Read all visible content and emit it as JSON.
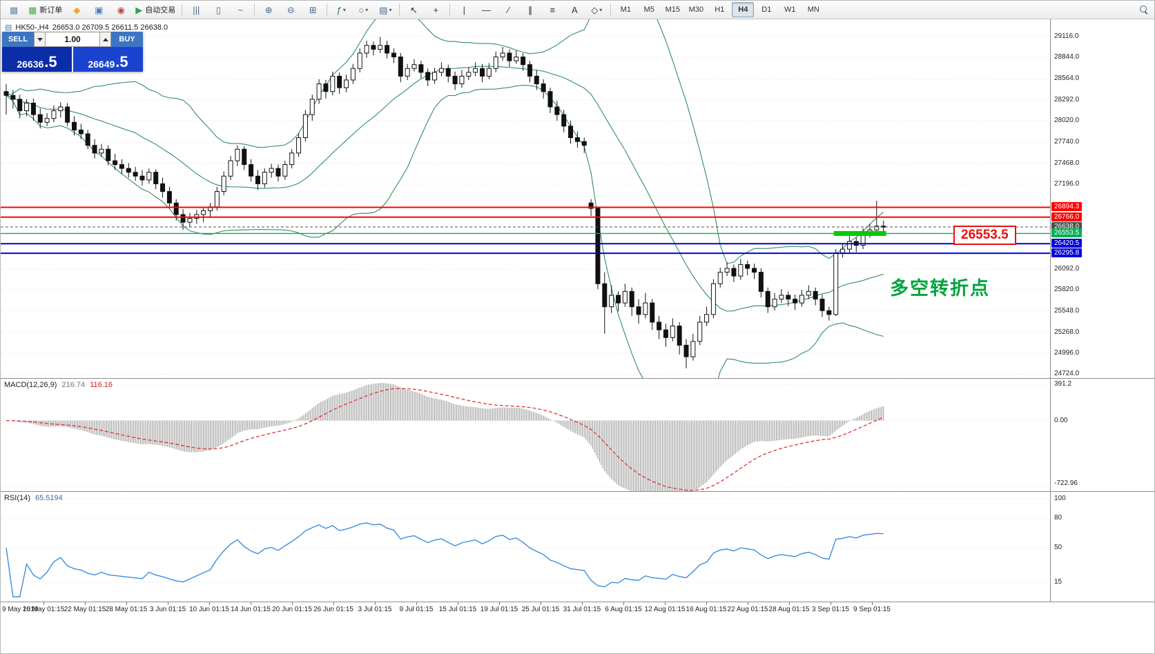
{
  "toolbar": {
    "caret_glyph": "▾",
    "groups": [
      {
        "items": [
          {
            "name": "chart-window-icon",
            "glyph": "▩",
            "color": "#6a8caf"
          },
          {
            "name": "new-order-button",
            "glyph": "▦",
            "color": "#3fae49",
            "label": "新订单"
          },
          {
            "name": "mql-community-icon",
            "glyph": "◆",
            "color": "#f0a830"
          },
          {
            "name": "profile-icon",
            "glyph": "▣",
            "color": "#4a7ebb"
          },
          {
            "name": "news-icon",
            "glyph": "◉",
            "color": "#c04848"
          },
          {
            "name": "autotrading-button",
            "glyph": "▶",
            "color": "#2ea44f",
            "label": "自动交易"
          }
        ]
      },
      {
        "items": [
          {
            "name": "bar-chart-icon",
            "glyph": "|||",
            "color": "#4a6b8a"
          },
          {
            "name": "candlestick-chart-icon",
            "glyph": "▯",
            "color": "#4a6b8a"
          },
          {
            "name": "line-chart-icon",
            "glyph": "~",
            "color": "#4a6b8a"
          }
        ]
      },
      {
        "items": [
          {
            "name": "zoom-in-icon",
            "glyph": "⊕",
            "color": "#4a6b8a"
          },
          {
            "name": "zoom-out-icon",
            "glyph": "⊖",
            "color": "#4a6b8a"
          },
          {
            "name": "tile-windows-icon",
            "glyph": "⊞",
            "color": "#4a6b8a"
          }
        ]
      },
      {
        "items": [
          {
            "name": "indicators-button",
            "glyph": "ƒ",
            "color": "#2e7d32",
            "caret": true
          },
          {
            "name": "periods-button",
            "glyph": "○",
            "color": "#4a6b8a",
            "caret": true
          },
          {
            "name": "templates-button",
            "glyph": "▤",
            "color": "#4a6b8a",
            "caret": true
          }
        ]
      },
      {
        "items": [
          {
            "name": "cursor-icon",
            "glyph": "↖",
            "color": "#333333"
          },
          {
            "name": "crosshair-icon",
            "glyph": "+",
            "color": "#333333"
          }
        ]
      },
      {
        "items": [
          {
            "name": "vertical-line-icon",
            "glyph": "|",
            "color": "#333333"
          },
          {
            "name": "horizontal-line-icon",
            "glyph": "—",
            "color": "#333333"
          },
          {
            "name": "trendline-icon",
            "glyph": "∕",
            "color": "#333333"
          },
          {
            "name": "channel-icon",
            "glyph": "∥",
            "color": "#333333"
          },
          {
            "name": "fibonacci-icon",
            "glyph": "≡",
            "color": "#333333"
          },
          {
            "name": "text-tool-icon",
            "glyph": "A",
            "color": "#333333"
          },
          {
            "name": "arrows-tool-icon",
            "glyph": "◇",
            "color": "#333333",
            "caret": true
          }
        ]
      }
    ],
    "timeframes": {
      "options": [
        "M1",
        "M5",
        "M15",
        "M30",
        "H1",
        "H4",
        "D1",
        "W1",
        "MN"
      ],
      "active": "H4"
    }
  },
  "chart_header": {
    "symbol": "HK50-,H4",
    "ohlc": "26653.0 26709.5 26611.5 26638.0"
  },
  "trade_panel": {
    "sell_label": "SELL",
    "buy_label": "BUY",
    "volume": "1.00",
    "sell_price_main": "26636",
    "sell_price_frac": ".5",
    "buy_price_main": "26649",
    "buy_price_frac": ".5"
  },
  "chart_data": {
    "type": "candlestick",
    "symbol": "HK50-",
    "period": "H4",
    "price_axis": {
      "min": 24700,
      "max": 29160,
      "labels": [
        "29116.0",
        "28844.0",
        "28564.0",
        "28292.0",
        "28020.0",
        "27740.0",
        "27468.0",
        "27196.0",
        "26092.0",
        "25820.0",
        "25548.0",
        "25268.0",
        "24996.0",
        "24724.0"
      ],
      "label_prices": [
        29116,
        28844,
        28564,
        28292,
        28020,
        27740,
        27468,
        27196,
        26092,
        25820,
        25548,
        25268,
        24996,
        24724
      ]
    },
    "candles": [
      [
        28400,
        28500,
        28100,
        28350
      ],
      [
        28350,
        28420,
        28180,
        28300
      ],
      [
        28300,
        28360,
        28050,
        28150
      ],
      [
        28150,
        28300,
        28080,
        28250
      ],
      [
        28250,
        28310,
        28020,
        28100
      ],
      [
        28100,
        28180,
        27920,
        28000
      ],
      [
        28000,
        28120,
        27950,
        28050
      ],
      [
        28050,
        28220,
        28000,
        28150
      ],
      [
        28150,
        28260,
        28060,
        28200
      ],
      [
        28200,
        28250,
        27950,
        28000
      ],
      [
        28000,
        28080,
        27830,
        27900
      ],
      [
        27900,
        27980,
        27780,
        27850
      ],
      [
        27850,
        27900,
        27650,
        27700
      ],
      [
        27700,
        27780,
        27530,
        27600
      ],
      [
        27600,
        27720,
        27550,
        27650
      ],
      [
        27650,
        27700,
        27440,
        27500
      ],
      [
        27500,
        27590,
        27380,
        27450
      ],
      [
        27450,
        27520,
        27330,
        27400
      ],
      [
        27400,
        27470,
        27280,
        27350
      ],
      [
        27350,
        27420,
        27240,
        27300
      ],
      [
        27300,
        27380,
        27180,
        27250
      ],
      [
        27250,
        27400,
        27200,
        27350
      ],
      [
        27350,
        27390,
        27130,
        27200
      ],
      [
        27200,
        27280,
        27020,
        27100
      ],
      [
        27100,
        27160,
        26880,
        26950
      ],
      [
        26950,
        27000,
        26720,
        26800
      ],
      [
        26800,
        26870,
        26600,
        26700
      ],
      [
        26700,
        26820,
        26640,
        26750
      ],
      [
        26750,
        26860,
        26680,
        26800
      ],
      [
        26800,
        26900,
        26700,
        26850
      ],
      [
        26850,
        26950,
        26760,
        26900
      ],
      [
        26900,
        27160,
        26850,
        27100
      ],
      [
        27100,
        27360,
        27050,
        27300
      ],
      [
        27300,
        27560,
        27250,
        27500
      ],
      [
        27500,
        27700,
        27430,
        27650
      ],
      [
        27650,
        27690,
        27380,
        27450
      ],
      [
        27450,
        27520,
        27230,
        27300
      ],
      [
        27300,
        27380,
        27120,
        27200
      ],
      [
        27200,
        27400,
        27150,
        27350
      ],
      [
        27350,
        27460,
        27280,
        27400
      ],
      [
        27400,
        27450,
        27230,
        27300
      ],
      [
        27300,
        27500,
        27250,
        27450
      ],
      [
        27450,
        27650,
        27400,
        27600
      ],
      [
        27600,
        27860,
        27550,
        27800
      ],
      [
        27800,
        28160,
        27750,
        28100
      ],
      [
        28100,
        28360,
        28020,
        28300
      ],
      [
        28300,
        28560,
        28240,
        28500
      ],
      [
        28500,
        28550,
        28310,
        28400
      ],
      [
        28400,
        28660,
        28350,
        28600
      ],
      [
        28600,
        28650,
        28370,
        28450
      ],
      [
        28450,
        28620,
        28390,
        28550
      ],
      [
        28550,
        28760,
        28500,
        28700
      ],
      [
        28700,
        28960,
        28650,
        28900
      ],
      [
        28900,
        29060,
        28840,
        29000
      ],
      [
        29000,
        29050,
        28870,
        28950
      ],
      [
        28950,
        29110,
        28900,
        29000
      ],
      [
        29000,
        29060,
        28830,
        28900
      ],
      [
        28900,
        28960,
        28770,
        28850
      ],
      [
        28850,
        28900,
        28520,
        28600
      ],
      [
        28600,
        28760,
        28550,
        28700
      ],
      [
        28700,
        28820,
        28660,
        28750
      ],
      [
        28750,
        28800,
        28570,
        28650
      ],
      [
        28650,
        28700,
        28470,
        28550
      ],
      [
        28550,
        28710,
        28500,
        28650
      ],
      [
        28650,
        28780,
        28600,
        28700
      ],
      [
        28700,
        28750,
        28520,
        28600
      ],
      [
        28600,
        28660,
        28420,
        28500
      ],
      [
        28500,
        28680,
        28450,
        28600
      ],
      [
        28600,
        28720,
        28550,
        28650
      ],
      [
        28650,
        28780,
        28600,
        28700
      ],
      [
        28700,
        28760,
        28520,
        28600
      ],
      [
        28600,
        28770,
        28560,
        28700
      ],
      [
        28700,
        28920,
        28650,
        28850
      ],
      [
        28850,
        28980,
        28800,
        28900
      ],
      [
        28900,
        28950,
        28720,
        28800
      ],
      [
        28800,
        28930,
        28760,
        28850
      ],
      [
        28850,
        28900,
        28670,
        28750
      ],
      [
        28750,
        28800,
        28520,
        28600
      ],
      [
        28600,
        28680,
        28420,
        28500
      ],
      [
        28500,
        28560,
        28310,
        28400
      ],
      [
        28400,
        28450,
        28120,
        28200
      ],
      [
        28200,
        28280,
        28020,
        28100
      ],
      [
        28100,
        28160,
        27870,
        27950
      ],
      [
        27950,
        28020,
        27720,
        27800
      ],
      [
        27800,
        27880,
        27670,
        27750
      ],
      [
        27750,
        27800,
        27600,
        27700
      ],
      [
        26950,
        27000,
        26780,
        26880
      ],
      [
        26880,
        26900,
        25830,
        25900
      ],
      [
        25900,
        26050,
        25250,
        25600
      ],
      [
        25600,
        25880,
        25520,
        25750
      ],
      [
        25750,
        25800,
        25540,
        25650
      ],
      [
        25650,
        25900,
        25600,
        25800
      ],
      [
        25800,
        25850,
        25480,
        25600
      ],
      [
        25600,
        25700,
        25380,
        25500
      ],
      [
        25500,
        25780,
        25450,
        25650
      ],
      [
        25650,
        25700,
        25300,
        25400
      ],
      [
        25400,
        25480,
        25180,
        25300
      ],
      [
        25300,
        25380,
        25080,
        25200
      ],
      [
        25200,
        25450,
        25150,
        25350
      ],
      [
        25350,
        25400,
        24980,
        25100
      ],
      [
        25100,
        25180,
        24800,
        24950
      ],
      [
        24950,
        25250,
        24900,
        25150
      ],
      [
        25150,
        25480,
        25100,
        25400
      ],
      [
        25400,
        25600,
        25350,
        25500
      ],
      [
        25500,
        25960,
        25450,
        25900
      ],
      [
        25900,
        26110,
        25850,
        26050
      ],
      [
        26050,
        26180,
        26000,
        26100
      ],
      [
        26100,
        26150,
        25920,
        26000
      ],
      [
        26000,
        26220,
        25950,
        26150
      ],
      [
        26150,
        26200,
        26010,
        26100
      ],
      [
        26100,
        26160,
        25960,
        26050
      ],
      [
        26050,
        26100,
        25720,
        25800
      ],
      [
        25800,
        25850,
        25520,
        25600
      ],
      [
        25600,
        25780,
        25550,
        25700
      ],
      [
        25700,
        25830,
        25650,
        25750
      ],
      [
        25750,
        25800,
        25610,
        25700
      ],
      [
        25700,
        25760,
        25560,
        25650
      ],
      [
        25650,
        25820,
        25600,
        25750
      ],
      [
        25750,
        25880,
        25700,
        25800
      ],
      [
        25800,
        25850,
        25620,
        25700
      ],
      [
        25700,
        25760,
        25470,
        25550
      ],
      [
        25550,
        25600,
        25420,
        25500
      ],
      [
        25500,
        26350,
        25480,
        26300
      ],
      [
        26300,
        26420,
        26240,
        26350
      ],
      [
        26350,
        26520,
        26300,
        26450
      ],
      [
        26450,
        26500,
        26310,
        26400
      ],
      [
        26400,
        26620,
        26350,
        26550
      ],
      [
        26550,
        26680,
        26500,
        26600
      ],
      [
        26600,
        26980,
        26550,
        26650
      ],
      [
        26650,
        26720,
        26560,
        26638
      ]
    ],
    "bollinger": {
      "period": 20,
      "deviation": 2,
      "color": "#2f8f57"
    },
    "hlines": [
      {
        "price": 26894.3,
        "label": "26894.3",
        "color": "#ff0000",
        "width": 2
      },
      {
        "price": 26766.0,
        "label": "26766.0",
        "color": "#ff0000",
        "width": 2
      },
      {
        "price": 26638.0,
        "label": "26638.0",
        "color": "#4d4d4d",
        "width": 1,
        "dash": true
      },
      {
        "price": 26553.5,
        "label": "26553.5",
        "color": "#00b050",
        "width": 1.3
      },
      {
        "price": 26420.5,
        "label": "26420.5",
        "color": "#0000dd",
        "width": 2
      },
      {
        "price": 26295.8,
        "label": "26295.8",
        "color": "#0000dd",
        "width": 2
      }
    ],
    "highlight": {
      "price": 26553.5,
      "from_index": 122,
      "to_index": 129,
      "color": "#00cc00",
      "thickness": 7
    },
    "callout": {
      "text": "26553.5",
      "color": "#e81010"
    },
    "annotation": {
      "text": "多空转折点",
      "color": "#00a43e"
    },
    "macd": {
      "label": "MACD(12,26,9)",
      "value_main": "216.74",
      "value_signal": "116.16",
      "axis_max": 391.2,
      "axis_min": -722.96,
      "axis_labels": [
        "391.2",
        "0.00",
        "-722.96"
      ],
      "histogram_color": "#9a9a9a",
      "signal_color": "#e03030",
      "value_main_color": "#777777",
      "value_signal_color": "#cc2222"
    },
    "rsi": {
      "label": "RSI(14)",
      "value": "65.5194",
      "levels": [
        100,
        80,
        50,
        15
      ],
      "color": "#3c8ce0",
      "value_color": "#3c6ea5"
    },
    "time_axis": {
      "labels": [
        "9 May 2019",
        "16 May 01:15",
        "22 May 01:15",
        "28 May 01:15",
        "3 Jun 01:15",
        "10 Jun 01:15",
        "14 Jun 01:15",
        "20 Jun 01:15",
        "26 Jun 01:15",
        "3 Jul 01:15",
        "9 Jul 01:15",
        "15 Jul 01:15",
        "19 Jul 01:15",
        "25 Jul 01:15",
        "31 Jul 01:15",
        "6 Aug 01:15",
        "12 Aug 01:15",
        "16 Aug 01:15",
        "22 Aug 01:15",
        "28 Aug 01:15",
        "3 Sep 01:15",
        "9 Sep 01:15"
      ]
    }
  }
}
